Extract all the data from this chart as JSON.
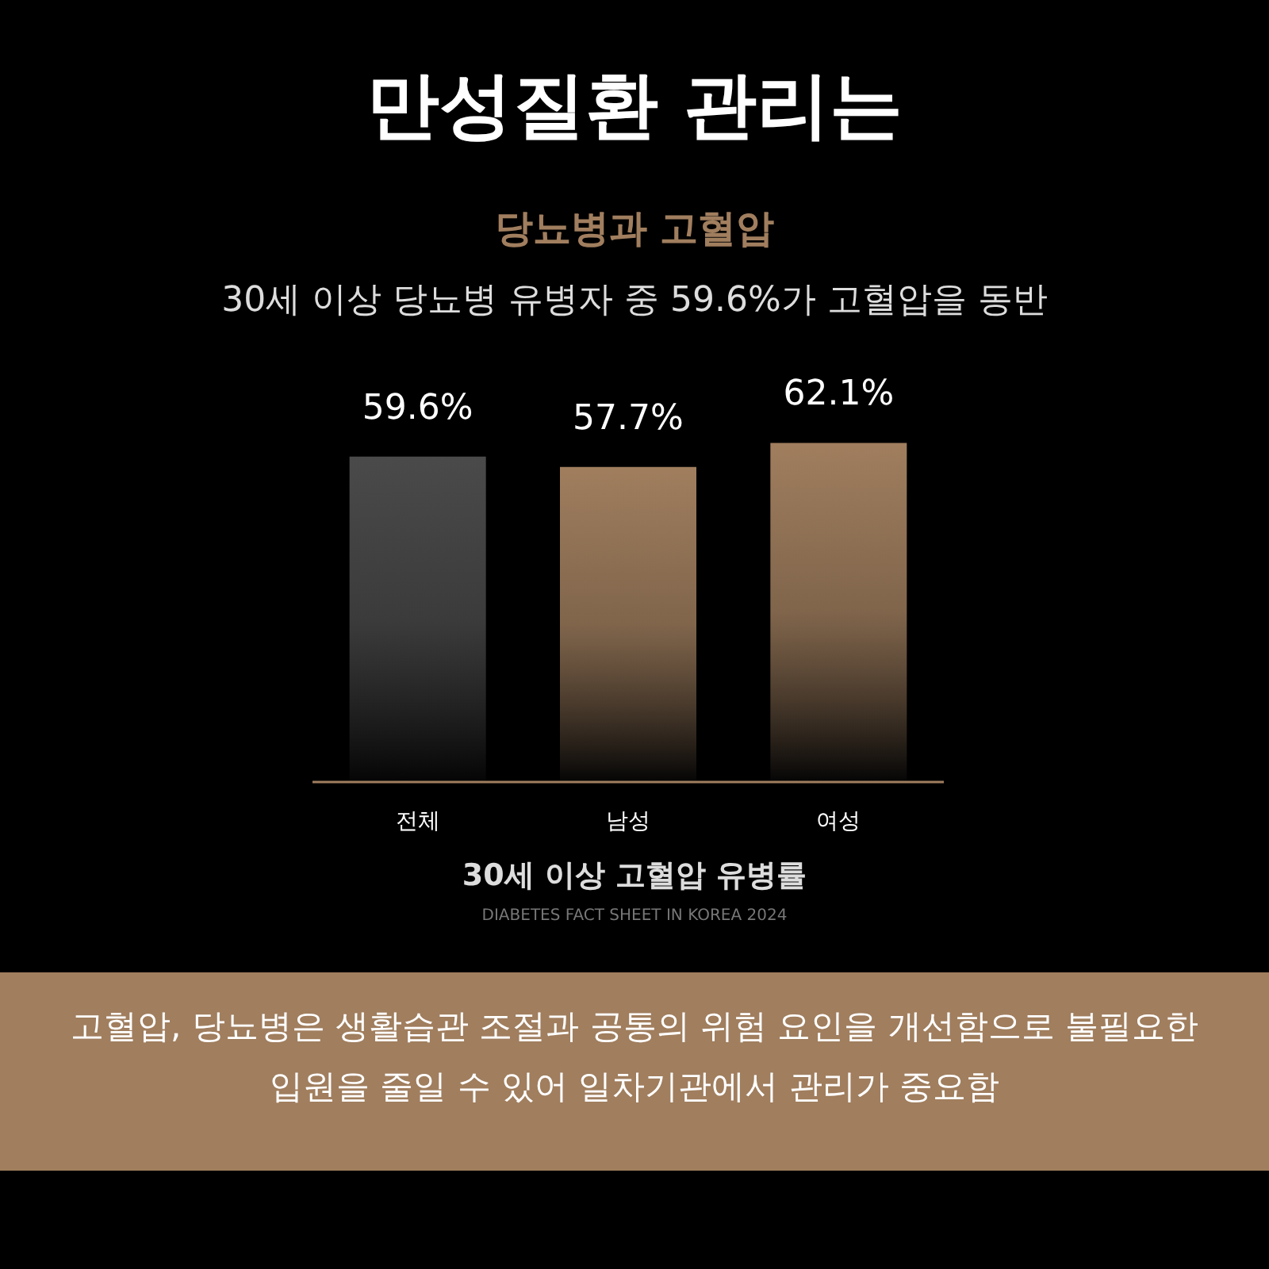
{
  "chart_data": {
    "type": "bar",
    "title": "만성질환 관리는",
    "subtitle": "당뇨병과 고혈압",
    "xlabel": "30세 이상 고혈압 유병률",
    "categories": [
      "전체",
      "남성",
      "여성"
    ],
    "values": [
      59.6,
      57.7,
      62.1
    ],
    "colors": [
      "#4a4a4a",
      "#a07e5e",
      "#a07e5e"
    ],
    "value_labels": [
      "59.6%",
      "57.7%",
      "62.1%"
    ],
    "annotations": [
      "30세 이상 당뇨병 유병자 중 59.6%가 고혈압을 동반",
      "DIABETES FACT SHEET IN KOREA 2024",
      "고혈압, 당뇨병은 생활습관 조절과 공통의 위험 요인을 개선함으로 불필요한 입원을 줄일 수 있어 일차기관에서 관리가 중요함"
    ]
  }
}
